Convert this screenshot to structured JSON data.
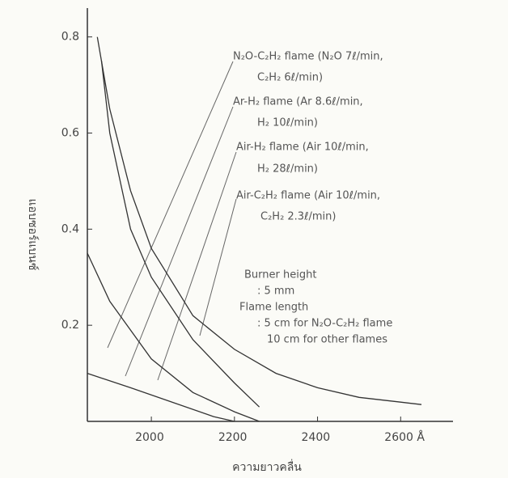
{
  "chart_data": {
    "type": "line",
    "y_label": "แอบซอร์แบนซ์",
    "x_label": "ความยาวคลื่น",
    "xlim": [
      1846,
      2726
    ],
    "ylim": [
      0,
      0.86
    ],
    "xticks": [
      2000,
      2200,
      2400,
      {
        "value": 2600,
        "label": "2600 Å"
      }
    ],
    "yticks": [
      0.2,
      0.4,
      0.6,
      0.8
    ],
    "series": [
      {
        "color": "#333333",
        "x": [
          1870,
          1900,
          1950,
          2000,
          2100,
          2200,
          2300,
          2400,
          2500,
          2600,
          2650
        ],
        "values": [
          0.8,
          0.65,
          0.48,
          0.36,
          0.22,
          0.15,
          0.1,
          0.07,
          0.05,
          0.04,
          0.035
        ]
      },
      {
        "color": "#333333",
        "x": [
          1880,
          1900,
          1950,
          2000,
          2100,
          2200,
          2260
        ],
        "values": [
          0.75,
          0.6,
          0.4,
          0.3,
          0.17,
          0.08,
          0.03
        ]
      },
      {
        "color": "#333333",
        "x": [
          1846,
          1900,
          2000,
          2100,
          2200,
          2260
        ],
        "values": [
          0.35,
          0.25,
          0.13,
          0.06,
          0.02,
          0
        ]
      },
      {
        "color": "#333333",
        "x": [
          1846,
          1950,
          2050,
          2150,
          2200
        ],
        "values": [
          0.1,
          0.07,
          0.04,
          0.01,
          0
        ]
      }
    ],
    "annotations": [
      "N₂O-C₂H₂ flame (N₂O 7ℓ/min,",
      "C₂H₂ 6ℓ/min)",
      "Ar-H₂ flame (Ar 8.6ℓ/min,",
      "H₂ 10ℓ/min)",
      "Air-H₂ flame (Air 10ℓ/min,",
      "H₂ 28ℓ/min)",
      "Air-C₂H₂ flame (Air 10ℓ/min,",
      "C₂H₂ 2.3ℓ/min)",
      "Burner height",
      ": 5 mm",
      "Flame length",
      ": 5 cm for N₂O-C₂H₂ flame",
      "10 cm for other flames"
    ]
  }
}
